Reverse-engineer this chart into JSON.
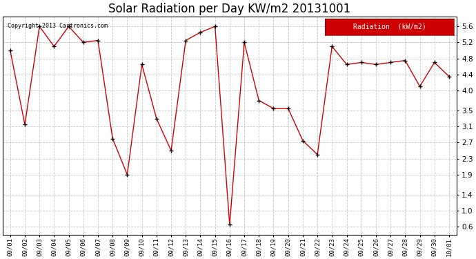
{
  "title": "Solar Radiation per Day KW/m2 20131001",
  "copyright_text": "Copyright 2013 Cartronics.com",
  "legend_label": "Radiation  (kW/m2)",
  "dates": [
    "09/01",
    "09/02",
    "09/03",
    "09/04",
    "09/05",
    "09/06",
    "09/07",
    "09/08",
    "09/09",
    "09/10",
    "09/11",
    "09/12",
    "09/13",
    "09/14",
    "09/15",
    "09/16",
    "09/17",
    "09/18",
    "09/19",
    "09/20",
    "09/21",
    "09/22",
    "09/23",
    "09/24",
    "09/25",
    "09/26",
    "09/27",
    "09/28",
    "09/29",
    "09/30",
    "10/01"
  ],
  "values": [
    5.0,
    3.15,
    5.6,
    5.1,
    5.6,
    5.2,
    5.25,
    2.8,
    1.9,
    4.65,
    3.3,
    2.5,
    5.25,
    5.45,
    5.6,
    0.65,
    5.2,
    3.75,
    3.55,
    3.55,
    2.75,
    2.4,
    5.1,
    4.65,
    4.7,
    4.65,
    4.7,
    4.75,
    4.1,
    4.7,
    4.35
  ],
  "line_color": "#cc0000",
  "marker_color": "#000000",
  "bg_color": "#ffffff",
  "grid_color": "#c8c8c8",
  "ylim": [
    0.4,
    5.85
  ],
  "yticks": [
    0.6,
    1.0,
    1.4,
    1.9,
    2.3,
    2.7,
    3.1,
    3.5,
    4.0,
    4.4,
    4.8,
    5.2,
    5.6
  ],
  "legend_bg": "#cc0000",
  "legend_fg": "#ffffff",
  "title_fontsize": 12
}
